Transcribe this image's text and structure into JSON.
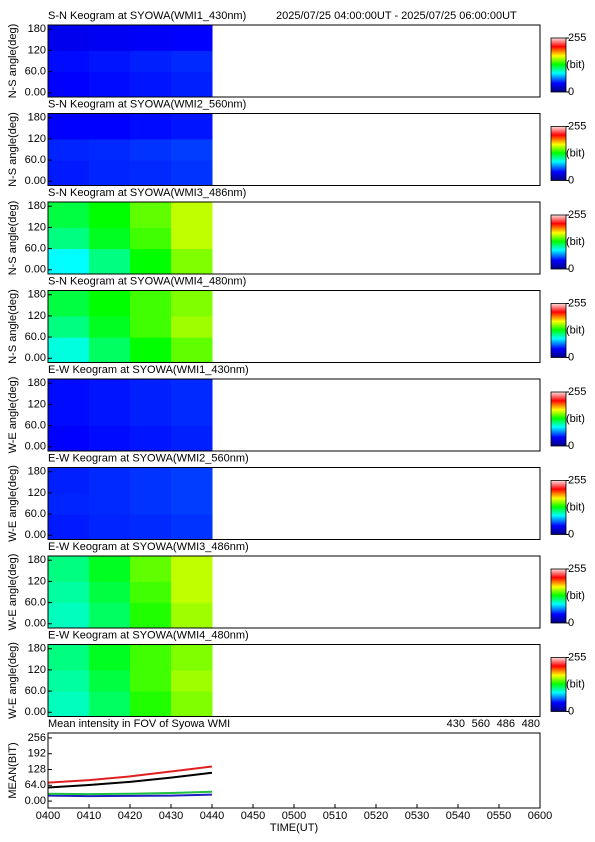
{
  "chart_data": [
    {
      "type": "heatmap",
      "title": "S-N Keogram at SYOWA(WMI1_430nm)",
      "subtitle": "2025/07/25 04:00:00UT - 2025/07/25 06:00:00UT",
      "ylabel": "N-S angle(deg)",
      "xlim": [
        "0400",
        "0600"
      ],
      "x_edges": [
        "0400",
        "0410",
        "0420",
        "0430",
        "0440"
      ],
      "y_edges": [
        0,
        60,
        120,
        180
      ],
      "values": [
        [
          40,
          42,
          44,
          46
        ],
        [
          42,
          44,
          46,
          48
        ],
        [
          35,
          36,
          38,
          40
        ]
      ],
      "ylim": [
        -12,
        192
      ],
      "yticks": [
        {
          "value": 0,
          "label": "0.00"
        },
        {
          "value": 60,
          "label": "60.0"
        },
        120,
        180
      ],
      "clim": [
        0,
        255
      ],
      "cticks": [
        0,
        255
      ],
      "cunit": "(bit)"
    },
    {
      "type": "heatmap",
      "title": "S-N Keogram at SYOWA(WMI2_560nm)",
      "ylabel": "N-S angle(deg)",
      "xlim": [
        "0400",
        "0600"
      ],
      "x_edges": [
        "0400",
        "0410",
        "0420",
        "0430",
        "0440"
      ],
      "y_edges": [
        0,
        60,
        120,
        180
      ],
      "values": [
        [
          45,
          47,
          48,
          50
        ],
        [
          47,
          48,
          50,
          52
        ],
        [
          40,
          40,
          42,
          44
        ]
      ],
      "ylim": [
        -12,
        192
      ],
      "yticks": [
        {
          "value": 0,
          "label": "0.00"
        },
        {
          "value": 60,
          "label": "60.0"
        },
        120,
        180
      ],
      "clim": [
        0,
        255
      ],
      "cticks": [
        0,
        255
      ],
      "cunit": "(bit)"
    },
    {
      "type": "heatmap",
      "title": "S-N Keogram at SYOWA(WMI3_486nm)",
      "ylabel": "N-S angle(deg)",
      "xlim": [
        "0400",
        "0600"
      ],
      "x_edges": [
        "0400",
        "0410",
        "0420",
        "0430",
        "0440"
      ],
      "y_edges": [
        0,
        60,
        120,
        180
      ],
      "values": [
        [
          90,
          110,
          130,
          150
        ],
        [
          110,
          125,
          140,
          160
        ],
        [
          120,
          130,
          145,
          160
        ]
      ],
      "ylim": [
        -12,
        192
      ],
      "yticks": [
        {
          "value": 0,
          "label": "0.00"
        },
        {
          "value": 60,
          "label": "60.0"
        },
        120,
        180
      ],
      "clim": [
        0,
        255
      ],
      "cticks": [
        0,
        255
      ],
      "cunit": "(bit)"
    },
    {
      "type": "heatmap",
      "title": "S-N Keogram at SYOWA(WMI4_480nm)",
      "ylabel": "N-S angle(deg)",
      "xlim": [
        "0400",
        "0600"
      ],
      "x_edges": [
        "0400",
        "0410",
        "0420",
        "0430",
        "0440"
      ],
      "y_edges": [
        0,
        60,
        120,
        180
      ],
      "values": [
        [
          95,
          115,
          130,
          145
        ],
        [
          110,
          125,
          140,
          155
        ],
        [
          120,
          130,
          140,
          150
        ]
      ],
      "ylim": [
        -12,
        192
      ],
      "yticks": [
        {
          "value": 0,
          "label": "0.00"
        },
        {
          "value": 60,
          "label": "60.0"
        },
        120,
        180
      ],
      "clim": [
        0,
        255
      ],
      "cticks": [
        0,
        255
      ],
      "cunit": "(bit)"
    },
    {
      "type": "heatmap",
      "title": "E-W Keogram at SYOWA(WMI1_430nm)",
      "ylabel": "W-E angle(deg)",
      "xlim": [
        "0400",
        "0600"
      ],
      "x_edges": [
        "0400",
        "0410",
        "0420",
        "0430",
        "0440"
      ],
      "y_edges": [
        0,
        60,
        120,
        180
      ],
      "values": [
        [
          40,
          42,
          44,
          46
        ],
        [
          42,
          44,
          46,
          48
        ],
        [
          42,
          44,
          46,
          48
        ]
      ],
      "ylim": [
        -12,
        192
      ],
      "yticks": [
        {
          "value": 0,
          "label": "0.00"
        },
        {
          "value": 60,
          "label": "60.0"
        },
        120,
        180
      ],
      "clim": [
        0,
        255
      ],
      "cticks": [
        0,
        255
      ],
      "cunit": "(bit)"
    },
    {
      "type": "heatmap",
      "title": "E-W Keogram at SYOWA(WMI2_560nm)",
      "ylabel": "W-E angle(deg)",
      "xlim": [
        "0400",
        "0600"
      ],
      "x_edges": [
        "0400",
        "0410",
        "0420",
        "0430",
        "0440"
      ],
      "y_edges": [
        0,
        60,
        120,
        180
      ],
      "values": [
        [
          45,
          47,
          48,
          50
        ],
        [
          47,
          48,
          50,
          52
        ],
        [
          46,
          48,
          50,
          52
        ]
      ],
      "ylim": [
        -12,
        192
      ],
      "yticks": [
        {
          "value": 0,
          "label": "0.00"
        },
        {
          "value": 60,
          "label": "60.0"
        },
        120,
        180
      ],
      "clim": [
        0,
        255
      ],
      "cticks": [
        0,
        255
      ],
      "cunit": "(bit)"
    },
    {
      "type": "heatmap",
      "title": "E-W Keogram at SYOWA(WMI3_486nm)",
      "ylabel": "W-E angle(deg)",
      "xlim": [
        "0400",
        "0600"
      ],
      "x_edges": [
        "0400",
        "0410",
        "0420",
        "0430",
        "0440"
      ],
      "y_edges": [
        0,
        60,
        120,
        180
      ],
      "values": [
        [
          100,
          115,
          135,
          155
        ],
        [
          105,
          120,
          140,
          160
        ],
        [
          110,
          125,
          145,
          160
        ]
      ],
      "ylim": [
        -12,
        192
      ],
      "yticks": [
        {
          "value": 0,
          "label": "0.00"
        },
        {
          "value": 60,
          "label": "60.0"
        },
        120,
        180
      ],
      "clim": [
        0,
        255
      ],
      "cticks": [
        0,
        255
      ],
      "cunit": "(bit)"
    },
    {
      "type": "heatmap",
      "title": "E-W Keogram at SYOWA(WMI4_480nm)",
      "ylabel": "W-E angle(deg)",
      "xlim": [
        "0400",
        "0600"
      ],
      "x_edges": [
        "0400",
        "0410",
        "0420",
        "0430",
        "0440"
      ],
      "y_edges": [
        0,
        60,
        120,
        180
      ],
      "values": [
        [
          100,
          115,
          135,
          150
        ],
        [
          105,
          120,
          140,
          155
        ],
        [
          110,
          125,
          140,
          150
        ]
      ],
      "ylim": [
        -12,
        192
      ],
      "yticks": [
        {
          "value": 0,
          "label": "0.00"
        },
        {
          "value": 60,
          "label": "60.0"
        },
        120,
        180
      ],
      "clim": [
        0,
        255
      ],
      "cticks": [
        0,
        255
      ],
      "cunit": "(bit)"
    },
    {
      "type": "line",
      "title": "Mean intensity in FOV of Syowa WMI",
      "xlabel": "TIME(UT)",
      "ylabel": "MEAN(BIT)",
      "xlim": [
        "0400",
        "0600"
      ],
      "xticks": [
        "0400",
        "0410",
        "0420",
        "0430",
        "0440",
        "0450",
        "0500",
        "0510",
        "0520",
        "0530",
        "0540",
        "0550",
        "0600"
      ],
      "ylim": [
        -28,
        276
      ],
      "yticks": [
        {
          "value": 0,
          "label": "0.00"
        },
        {
          "value": 64,
          "label": "64.0"
        },
        128,
        192,
        256
      ],
      "x": [
        "0400",
        "0410",
        "0420",
        "0430",
        "0440"
      ],
      "series": [
        {
          "name": "430",
          "color": "#2020c0",
          "values": [
            22,
            20,
            21,
            22,
            26
          ]
        },
        {
          "name": "560",
          "color": "#20c040",
          "values": [
            30,
            28,
            30,
            33,
            38
          ]
        },
        {
          "name": "486",
          "color": "#e02020",
          "values": [
            75,
            85,
            100,
            120,
            140
          ]
        },
        {
          "name": "480",
          "color": "#000000",
          "values": [
            55,
            65,
            78,
            95,
            115
          ]
        }
      ]
    }
  ]
}
